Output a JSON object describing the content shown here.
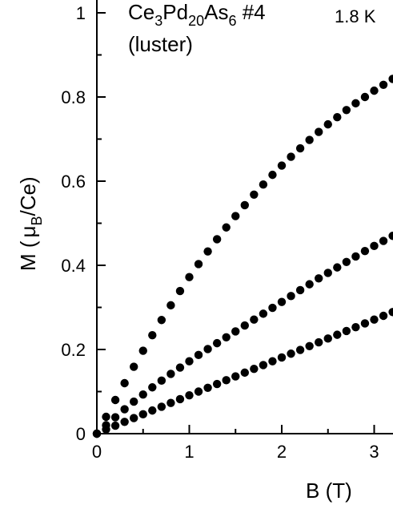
{
  "chart_data": {
    "type": "scatter",
    "xlabel": "B (T)",
    "ylabel_parts": {
      "pre": "M (",
      "mu": "μ",
      "sub": "B",
      "post": "/Ce)"
    },
    "annotation": {
      "formula": [
        {
          "t": "Ce",
          "sub": false
        },
        {
          "t": "3",
          "sub": true
        },
        {
          "t": "Pd",
          "sub": false
        },
        {
          "t": "20",
          "sub": true
        },
        {
          "t": "As",
          "sub": false
        },
        {
          "t": "6",
          "sub": true
        },
        {
          "t": " #4",
          "sub": false
        }
      ],
      "note": "(luster)",
      "temperature": "1.8 K"
    },
    "xlim": [
      0,
      3.2
    ],
    "ylim": [
      0,
      1
    ],
    "xticks": [
      0,
      1,
      2,
      3
    ],
    "xtick_labels": [
      "0",
      "1",
      "2",
      "3"
    ],
    "yticks": [
      0,
      0.2,
      0.4,
      0.6,
      0.8,
      1
    ],
    "ytick_labels": [
      "0",
      "0.2",
      "0.4",
      "0.6",
      "0.8",
      "1"
    ],
    "legend": "none",
    "grid": false,
    "marker_color": "#000000",
    "series": [
      {
        "x": [
          0.0,
          0.1,
          0.2,
          0.3,
          0.4,
          0.5,
          0.6,
          0.7,
          0.8,
          0.9,
          1.0,
          1.1,
          1.2,
          1.3,
          1.4,
          1.5,
          1.6,
          1.7,
          1.8,
          1.9,
          2.0,
          2.1,
          2.2,
          2.3,
          2.4,
          2.5,
          2.6,
          2.7,
          2.8,
          2.9,
          3.0,
          3.1,
          3.2
        ],
        "y": [
          0.0,
          0.04,
          0.08,
          0.12,
          0.159,
          0.197,
          0.234,
          0.27,
          0.305,
          0.339,
          0.372,
          0.403,
          0.433,
          0.462,
          0.49,
          0.517,
          0.543,
          0.568,
          0.592,
          0.615,
          0.637,
          0.658,
          0.678,
          0.698,
          0.717,
          0.735,
          0.752,
          0.769,
          0.785,
          0.8,
          0.815,
          0.829,
          0.843
        ]
      },
      {
        "x": [
          0.0,
          0.1,
          0.2,
          0.3,
          0.4,
          0.5,
          0.6,
          0.7,
          0.8,
          0.9,
          1.0,
          1.1,
          1.2,
          1.3,
          1.4,
          1.5,
          1.6,
          1.7,
          1.8,
          1.9,
          2.0,
          2.1,
          2.2,
          2.3,
          2.4,
          2.5,
          2.6,
          2.7,
          2.8,
          2.9,
          3.0,
          3.1,
          3.2
        ],
        "y": [
          0.0,
          0.02,
          0.039,
          0.058,
          0.076,
          0.093,
          0.11,
          0.126,
          0.142,
          0.157,
          0.172,
          0.187,
          0.201,
          0.215,
          0.229,
          0.243,
          0.257,
          0.271,
          0.285,
          0.299,
          0.313,
          0.327,
          0.341,
          0.355,
          0.369,
          0.382,
          0.395,
          0.408,
          0.421,
          0.434,
          0.446,
          0.458,
          0.47
        ]
      },
      {
        "x": [
          0.0,
          0.1,
          0.2,
          0.3,
          0.4,
          0.5,
          0.6,
          0.7,
          0.8,
          0.9,
          1.0,
          1.1,
          1.2,
          1.3,
          1.4,
          1.5,
          1.6,
          1.7,
          1.8,
          1.9,
          2.0,
          2.1,
          2.2,
          2.3,
          2.4,
          2.5,
          2.6,
          2.7,
          2.8,
          2.9,
          3.0,
          3.1,
          3.2
        ],
        "y": [
          0.0,
          0.01,
          0.019,
          0.028,
          0.037,
          0.046,
          0.055,
          0.064,
          0.073,
          0.082,
          0.091,
          0.1,
          0.109,
          0.118,
          0.127,
          0.136,
          0.145,
          0.154,
          0.163,
          0.172,
          0.181,
          0.19,
          0.199,
          0.208,
          0.217,
          0.226,
          0.235,
          0.244,
          0.253,
          0.262,
          0.271,
          0.28,
          0.289
        ]
      }
    ]
  }
}
